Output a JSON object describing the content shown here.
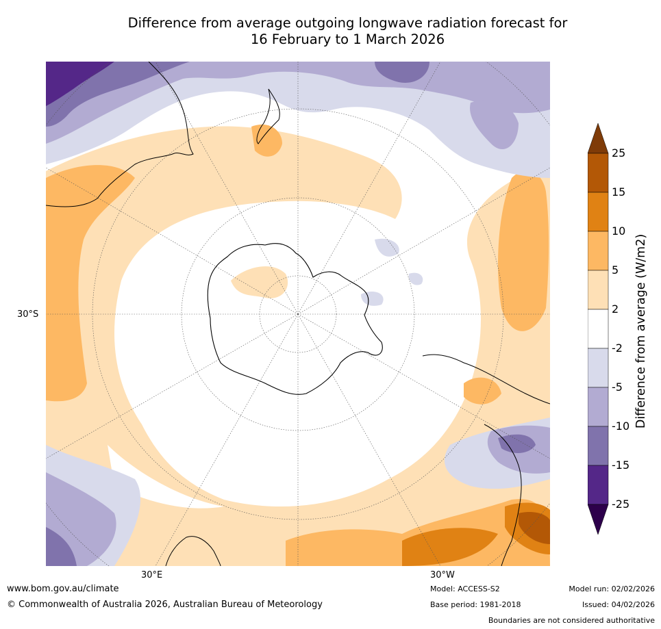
{
  "title": {
    "line1": "Difference from average outgoing longwave radiation forecast for",
    "line2": "16 February to 1 March 2026"
  },
  "map": {
    "lat_label": "30°S",
    "lon_labels": [
      "30°E",
      "30°W"
    ]
  },
  "colorbar": {
    "title": "Difference from average (W/m2)",
    "ticks": [
      "25",
      "15",
      "10",
      "5",
      "2",
      "-2",
      "-5",
      "-10",
      "-15",
      "-25"
    ],
    "colors": {
      "over": "#7f3b08",
      "b15_25": "#b35806",
      "b10_15": "#e08214",
      "b5_10": "#fdb863",
      "b2_5": "#fee0b6",
      "neutral": "#ffffff",
      "m2_5": "#d8daeb",
      "m5_10": "#b2abd2",
      "m10_15": "#8073ac",
      "m15_25": "#542788",
      "under": "#2d004b"
    }
  },
  "footer": {
    "website": "www.bom.gov.au/climate",
    "copyright": "© Commonwealth of Australia 2026, Australian Bureau of Meteorology",
    "model": "Model: ACCESS-S2",
    "base_period": "Base period: 1981-2018",
    "model_run": "Model run: 02/02/2026",
    "issued": "Issued: 04/02/2026",
    "disclaimer": "Boundaries are not considered authoritative"
  }
}
